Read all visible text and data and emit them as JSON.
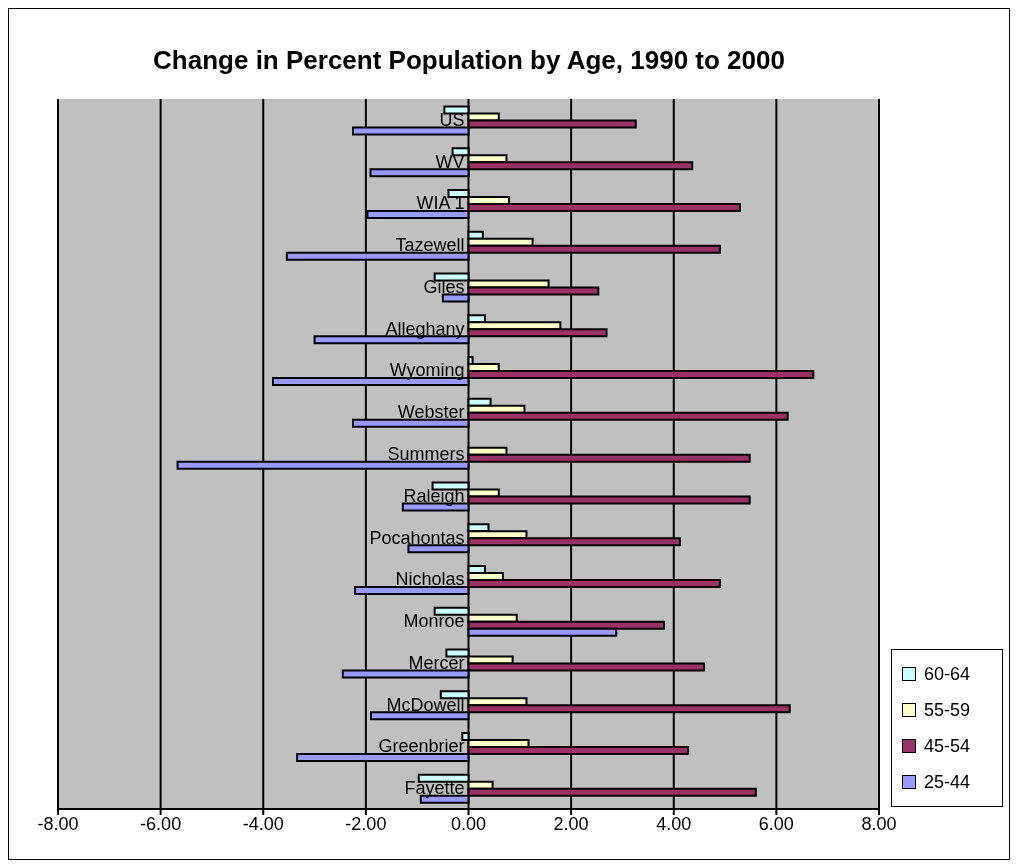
{
  "chart_data": {
    "type": "bar",
    "orientation": "horizontal",
    "title": "Change in Percent Population by Age, 1990 to 2000",
    "categories": [
      "US",
      "WV",
      "WIA 1",
      "Tazewell",
      "Giles",
      "Alleghany",
      "Wyoming",
      "Webster",
      "Summers",
      "Raleigh",
      "Pocahontas",
      "Nicholas",
      "Monroe",
      "Mercer",
      "McDowell",
      "Greenbrier",
      "Fayette"
    ],
    "series": [
      {
        "name": "60-64",
        "color": "#ccffff",
        "values": [
          -0.47,
          -0.31,
          -0.39,
          0.28,
          -0.66,
          0.32,
          0.08,
          0.43,
          0,
          -0.7,
          0.39,
          0.32,
          -0.66,
          -0.43,
          -0.54,
          -0.12,
          -0.97
        ]
      },
      {
        "name": "55-59",
        "color": "#ffffcc",
        "values": [
          0.59,
          0.74,
          0.79,
          1.25,
          1.56,
          1.79,
          0.59,
          1.09,
          0.74,
          0.59,
          1.13,
          0.67,
          0.94,
          0.86,
          1.13,
          1.17,
          0.47
        ]
      },
      {
        "name": "45-54",
        "color": "#993366",
        "values": [
          3.26,
          4.36,
          5.29,
          4.9,
          2.53,
          2.69,
          6.72,
          6.22,
          5.48,
          5.48,
          4.12,
          4.9,
          3.81,
          4.59,
          6.26,
          4.28,
          5.6
        ]
      },
      {
        "name": "25-44",
        "color": "#9999ff",
        "values": [
          -2.25,
          -1.91,
          -1.97,
          -3.54,
          -0.5,
          -3.0,
          -3.81,
          -2.25,
          -5.67,
          -1.28,
          -1.17,
          -2.21,
          2.88,
          -2.45,
          -1.9,
          -3.34,
          -0.93
        ]
      }
    ],
    "xlim": [
      -8,
      8
    ],
    "xticks": [
      {
        "value": -8,
        "label": "-8.00"
      },
      {
        "value": -6,
        "label": "-6.00"
      },
      {
        "value": -4,
        "label": "-4.00"
      },
      {
        "value": -2,
        "label": "-2.00"
      },
      {
        "value": 0,
        "label": "0.00"
      },
      {
        "value": 2,
        "label": "2.00"
      },
      {
        "value": 4,
        "label": "4.00"
      },
      {
        "value": 6,
        "label": "6.00"
      },
      {
        "value": 8,
        "label": "8.00"
      }
    ],
    "grid": "x",
    "legend": "right"
  }
}
